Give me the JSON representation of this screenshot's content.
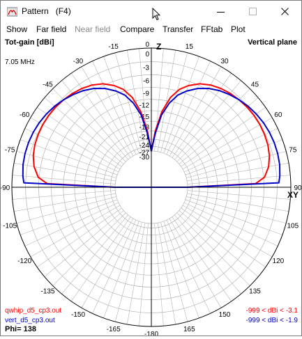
{
  "window": {
    "title": "Pattern",
    "fkey": "(F4)",
    "icons": {
      "app": "pattern-app-icon",
      "minimize": "minimize-icon",
      "maximize": "maximize-icon",
      "close": "close-icon"
    }
  },
  "menu": [
    {
      "label": "Show",
      "enabled": true
    },
    {
      "label": "Far field",
      "enabled": true
    },
    {
      "label": "Near field",
      "enabled": false
    },
    {
      "label": "Compare",
      "enabled": true
    },
    {
      "label": "Transfer",
      "enabled": true
    },
    {
      "label": "FFtab",
      "enabled": true
    },
    {
      "label": "Plot",
      "enabled": true
    }
  ],
  "plot": {
    "quantity": "Tot-gain [dBi]",
    "plane": "Vertical plane",
    "frequency": "7.05 MHz",
    "z_label": "Z",
    "xy_label": "XY",
    "phi": "Phi= 138",
    "colors": {
      "series1": "#ff0000",
      "series2": "#0000c8",
      "grid": "#b4b4b4",
      "axis": "#000000"
    }
  },
  "chart_data": {
    "type": "polar",
    "angle_labels_left": [
      "0",
      "-15",
      "-30",
      "-45",
      "-60",
      "-75",
      "-90",
      "-105",
      "-120",
      "-135",
      "-150",
      "-165",
      "-180"
    ],
    "angle_labels_right": [
      "0",
      "15",
      "30",
      "45",
      "60",
      "75",
      "90",
      "105",
      "120",
      "135",
      "150",
      "165"
    ],
    "angle_units": "degrees",
    "radial_ticks_dbi": [
      "0",
      "-3",
      "-6",
      "-9",
      "-12",
      "-15",
      "-18",
      "-21",
      "-24",
      "-27",
      "-30"
    ],
    "radial_range_dbi": [
      -30,
      0
    ],
    "series": [
      {
        "name": "qwhip_d5_cp3.out",
        "range_text": "-999 < dBi < -3.1",
        "color": "#ff0000",
        "angles": [
          0,
          4,
          8,
          12,
          16,
          20,
          25,
          30,
          35,
          40,
          45,
          50,
          55,
          60,
          65,
          70,
          75,
          80,
          85,
          88,
          90
        ],
        "values": [
          -30,
          -21,
          -15,
          -11,
          -8.5,
          -7,
          -5.6,
          -4.7,
          -4.1,
          -3.7,
          -3.4,
          -3.2,
          -3.1,
          -3.1,
          -3.2,
          -3.4,
          -3.8,
          -4.5,
          -5.8,
          -8,
          -30
        ]
      },
      {
        "name": "vert_d5_cp3.out",
        "range_text": "-999 < dBi < -1.9",
        "color": "#0000c8",
        "angles": [
          0,
          4,
          8,
          12,
          16,
          20,
          25,
          30,
          35,
          40,
          45,
          50,
          55,
          60,
          65,
          70,
          75,
          80,
          85,
          88,
          90
        ],
        "values": [
          -30,
          -22,
          -16,
          -12.5,
          -10,
          -8.4,
          -6.8,
          -5.6,
          -4.7,
          -4.0,
          -3.4,
          -2.9,
          -2.5,
          -2.2,
          -2.0,
          -1.9,
          -1.9,
          -2.0,
          -2.3,
          -2.6,
          -30
        ]
      }
    ]
  }
}
